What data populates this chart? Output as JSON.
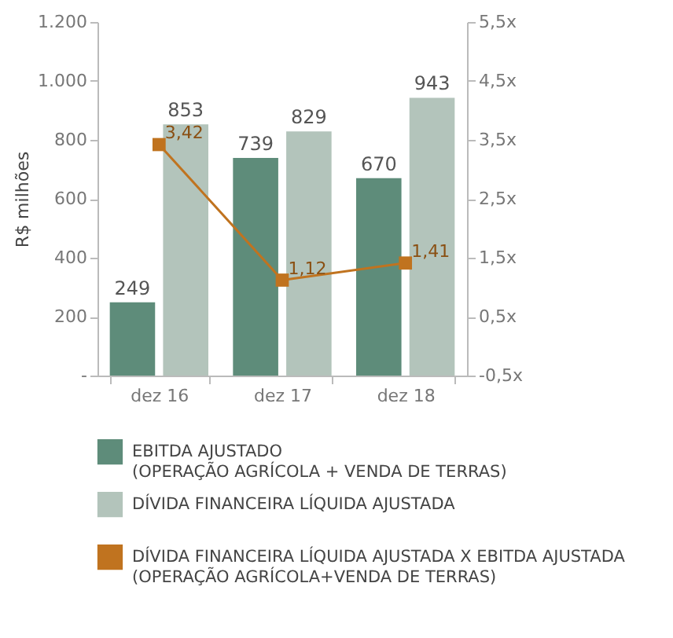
{
  "chart_data": {
    "type": "bar",
    "ylabel": "R$ milhões",
    "categories": [
      "dez 16",
      "dez 17",
      "dez 18"
    ],
    "series": [
      {
        "name": "EBITDA AJUSTADO\n(OPERAÇÃO AGRÍCOLA + VENDA DE TERRAS)",
        "color": "#5e8c7a",
        "values": [
          249,
          739,
          670
        ]
      },
      {
        "name": "DÍVIDA FINANCEIRA LÍQUIDA AJUSTADA",
        "color": "#b3c4bb",
        "values": [
          853,
          829,
          943
        ]
      },
      {
        "name": "DÍVIDA FINANCEIRA LÍQUIDA AJUSTADA X EBITDA AJUSTADA\n(OPERAÇÃO AGRÍCOLA+VENDA DE TERRAS)",
        "type": "line",
        "axis": "y2",
        "color": "#c0731f",
        "marker": "square",
        "values": [
          3.42,
          1.12,
          1.41
        ],
        "value_labels": [
          "3,42",
          "1,12",
          "1,41"
        ]
      }
    ],
    "data_labels": true,
    "ylim": [
      0,
      1200
    ],
    "yticks": [
      {
        "value": 0,
        "label": "-"
      },
      200,
      400,
      600,
      800,
      {
        "value": 1000,
        "label": "1.000"
      },
      {
        "value": 1200,
        "label": "1.200"
      }
    ],
    "y2lim": [
      -0.5,
      5.5
    ],
    "y2ticks": [
      {
        "value": -0.5,
        "label": "-0,5x"
      },
      {
        "value": 0.5,
        "label": "0,5x"
      },
      {
        "value": 1.5,
        "label": "1,5x"
      },
      {
        "value": 2.5,
        "label": "2,5x"
      },
      {
        "value": 3.5,
        "label": "3,5x"
      },
      {
        "value": 4.5,
        "label": "4,5x"
      },
      {
        "value": 5.5,
        "label": "5,5x"
      }
    ],
    "legend": "bottom"
  }
}
